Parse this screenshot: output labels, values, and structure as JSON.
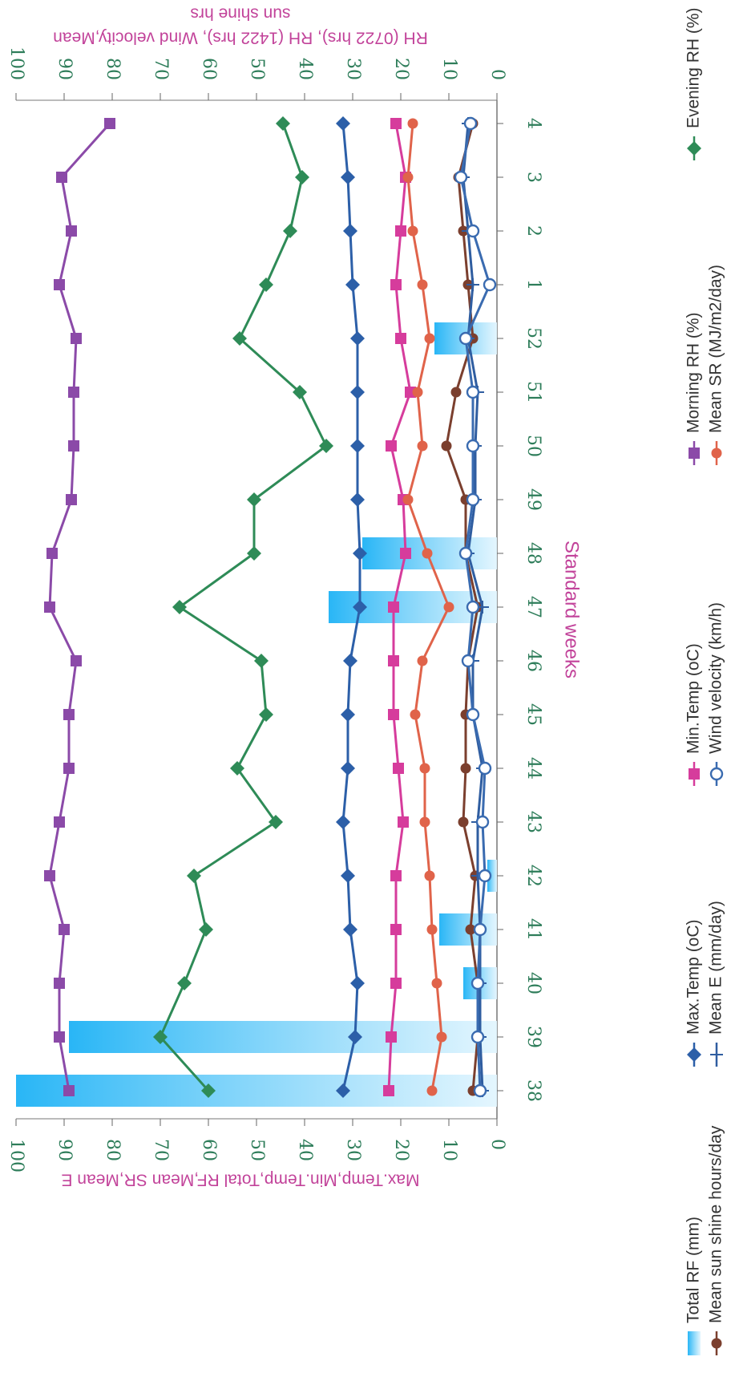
{
  "chart_data": {
    "type": "line",
    "xlabel": "Standard weeks",
    "ylabel_left": "Max.Temp,Min.Temp,Total RF,Mean SR,Mean E",
    "ylabel_right_1": "RH (0722 hrs), RH (1422 hrs), Wind velocity,Mean",
    "ylabel_right_2": "sun shine hrs",
    "categories": [
      "38",
      "39",
      "40",
      "41",
      "42",
      "43",
      "44",
      "45",
      "46",
      "47",
      "48",
      "49",
      "50",
      "51",
      "52",
      "1",
      "2",
      "3",
      "4"
    ],
    "ylim": [
      0,
      100
    ],
    "yticks": [
      0,
      10,
      20,
      30,
      40,
      50,
      60,
      70,
      80,
      90,
      100
    ],
    "series": [
      {
        "name": "Total RF (mm)",
        "kind": "bar",
        "color": "#29b6f6",
        "values": [
          100,
          89,
          7,
          12,
          2,
          0,
          0,
          0,
          0,
          35,
          28,
          0,
          0,
          0,
          13,
          0,
          0,
          0,
          0
        ]
      },
      {
        "name": "Max.Temp (oC)",
        "axis": "left",
        "color": "#2c5fa8",
        "marker": "diamond",
        "values": [
          32,
          29.5,
          29,
          30.5,
          31,
          32,
          31,
          31,
          30.5,
          28.5,
          28.5,
          29,
          29,
          29,
          29,
          30,
          30.5,
          31,
          32
        ]
      },
      {
        "name": "Min.Temp (oC)",
        "axis": "left",
        "color": "#d63c9c",
        "marker": "square",
        "values": [
          22.5,
          22,
          21,
          21,
          21,
          19.5,
          20.5,
          21.5,
          21.5,
          21.5,
          19,
          19.5,
          22,
          18,
          20,
          21,
          20,
          19,
          21
        ]
      },
      {
        "name": "Morning RH (%)",
        "axis": "right",
        "color": "#8b4aa8",
        "marker": "square",
        "values": [
          89,
          91,
          91,
          90,
          93,
          91,
          89,
          89,
          87.5,
          93,
          92.5,
          88.5,
          88,
          88,
          87.5,
          91,
          88.5,
          90.5,
          80.5
        ]
      },
      {
        "name": "Evening RH (%)",
        "axis": "right",
        "color": "#2e8b57",
        "marker": "diamond",
        "values": [
          60,
          70,
          65,
          60.5,
          63,
          46,
          54,
          48,
          49,
          66,
          50.5,
          50.5,
          35.5,
          41,
          53.5,
          48,
          43,
          40.5,
          44.5
        ]
      },
      {
        "name": "Mean sun shine hours/day",
        "axis": "right",
        "color": "#7b3f2e",
        "marker": "circle",
        "values": [
          5,
          4,
          4,
          5.5,
          4.5,
          7,
          6.5,
          6.5,
          6,
          4,
          6.5,
          6.5,
          10.5,
          8.5,
          5,
          6,
          7,
          8,
          5
        ]
      },
      {
        "name": "Mean E (mm/day)",
        "axis": "left",
        "color": "#2f5da0",
        "marker": "plus",
        "values": [
          3,
          3.5,
          3.5,
          3.5,
          4,
          4,
          3,
          5,
          5,
          3,
          6,
          4.5,
          4.5,
          4,
          6,
          5,
          6,
          7,
          6
        ]
      },
      {
        "name": "Wind velocity (km/h)",
        "axis": "right",
        "color": "#3a6bb0",
        "marker": "open-circle",
        "values": [
          3.5,
          4,
          4,
          3.5,
          2.5,
          3,
          2.5,
          5,
          6,
          5,
          6.5,
          5,
          5,
          5,
          6.5,
          1.5,
          5,
          7.5,
          5.5
        ]
      },
      {
        "name": "Mean SR (MJ/m2/day)",
        "axis": "left",
        "color": "#e0634a",
        "marker": "circle",
        "values": [
          13.5,
          11.5,
          12.5,
          13.5,
          14,
          15,
          15,
          17,
          15.5,
          10,
          14.5,
          18.5,
          15.5,
          16.5,
          14,
          15.5,
          17.5,
          18.5,
          17.5
        ]
      }
    ],
    "legend_placement": "bottom"
  }
}
